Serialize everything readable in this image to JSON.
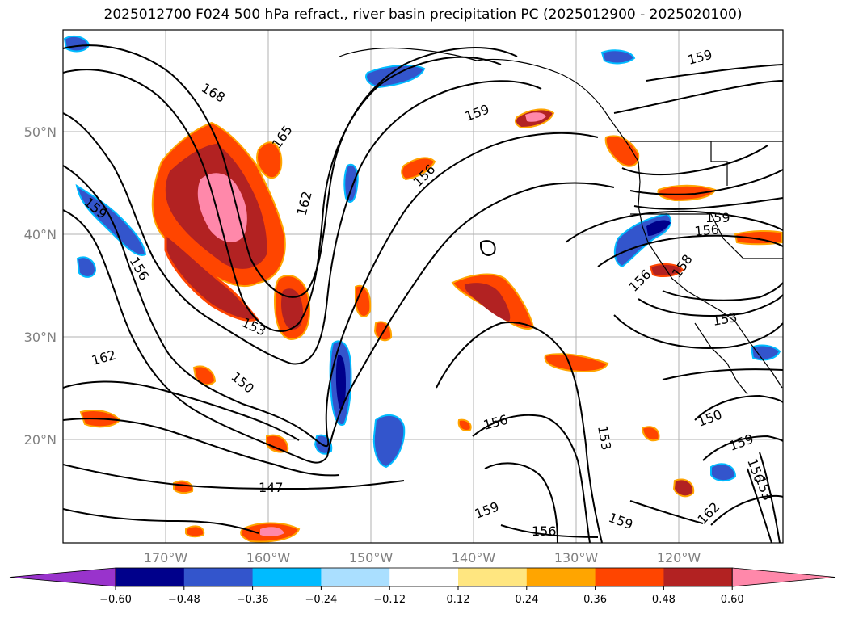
{
  "title": "2025012700 F024 500 hPa refract., river basin precipitation PC (2025012900 - 2025020100)",
  "lat_labels": [
    "50°N",
    "40°N",
    "30°N",
    "20°N"
  ],
  "lon_labels": [
    "170°W",
    "160°W",
    "150°W",
    "140°W",
    "130°W",
    "120°W"
  ],
  "contour_labels": [
    "168",
    "165",
    "162",
    "159",
    "156",
    "153",
    "150",
    "147",
    "162",
    "159",
    "156",
    "159",
    "156",
    "159",
    "156",
    "158",
    "153",
    "156",
    "153",
    "150",
    "159",
    "156",
    "153",
    "162",
    "159",
    "156"
  ],
  "colorbar": {
    "ticks": [
      "−0.60",
      "−0.48",
      "−0.36",
      "−0.24",
      "−0.12",
      "0.12",
      "0.24",
      "0.36",
      "0.48",
      "0.60"
    ],
    "colors": [
      "#9933cc",
      "#00008b",
      "#3355cc",
      "#00bbff",
      "#aadfff",
      "#ffffff",
      "#ffe680",
      "#ffa500",
      "#ff4500",
      "#b22222",
      "#ff88aa"
    ]
  },
  "colors": {
    "grid": "#b0b0b0",
    "contour": "#000000",
    "label": "#808080"
  }
}
